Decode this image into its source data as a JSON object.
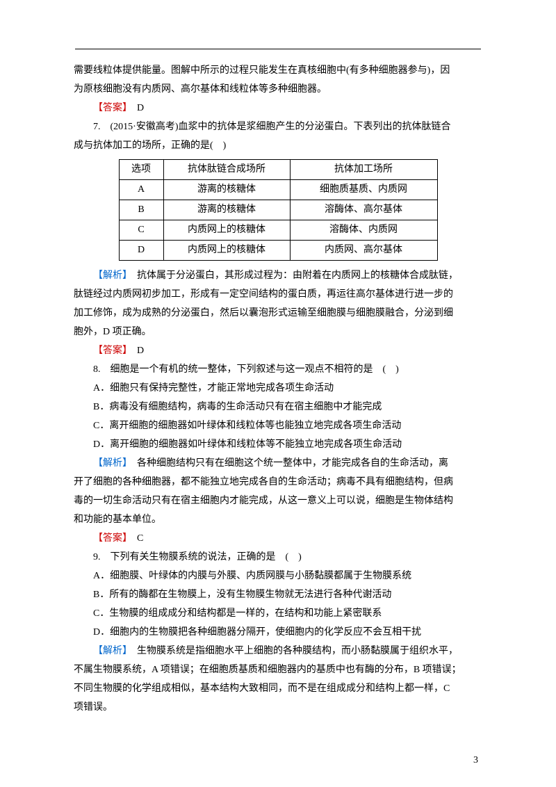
{
  "intro": {
    "line1": "需要线粒体提供能量。图解中所示的过程只能发生在真核细胞中(有多种细胞器参与)，因",
    "line2": "为原核细胞没有内质网、高尔基体和线粒体等多种细胞器。"
  },
  "answer6": {
    "label": "【答案】",
    "value": "　D"
  },
  "q7": {
    "heading": "7.　(2015·安徽高考)血浆中的抗体是浆细胞产生的分泌蛋白。下表列出的抗体肽链合",
    "heading2": "成与抗体加工的场所，正确的是(　)"
  },
  "table7": {
    "columns": [
      "选项",
      "抗体肽链合成场所",
      "抗体加工场所"
    ],
    "rows": [
      [
        "A",
        "游离的核糖体",
        "细胞质基质、内质网"
      ],
      [
        "B",
        "游离的核糖体",
        "溶酶体、高尔基体"
      ],
      [
        "C",
        "内质网上的核糖体",
        "溶酶体、内质网"
      ],
      [
        "D",
        "内质网上的核糖体",
        "内质网、高尔基体"
      ]
    ]
  },
  "expl7": {
    "label": "【解析】",
    "p1": "　抗体属于分泌蛋白，其形成过程为：由附着在内质网上的核糖体合成肽链，",
    "p2": "肽链经过内质网初步加工，形成有一定空间结构的蛋白质，再运往高尔基体进行进一步的",
    "p3": "加工修饰，成为成熟的分泌蛋白，然后以囊泡形式运输至细胞膜与细胞膜融合，分泌到细",
    "p4": "胞外，D 项正确。"
  },
  "answer7": {
    "label": "【答案】",
    "value": "　D"
  },
  "q8": {
    "heading": "8.　细胞是一个有机的统一整体，下列叙述与这一观点不相符的是　(　)",
    "A": "A．细胞只有保持完整性，才能正常地完成各项生命活动",
    "B": "B．病毒没有细胞结构，病毒的生命活动只有在宿主细胞中才能完成",
    "C": "C．离开细胞的细胞器如叶绿体和线粒体等也能独立地完成各项生命活动",
    "D": "D．离开细胞的细胞器如叶绿体和线粒体等不能独立地完成各项生命活动"
  },
  "expl8": {
    "label": "【解析】",
    "p1": "　各种细胞结构只有在细胞这个统一整体中，才能完成各自的生命活动，离",
    "p2": "开了细胞的各种细胞器，都不能独立地完成各自的生命活动；病毒不具有细胞结构，但病",
    "p3": "毒的一切生命活动只有在宿主细胞内才能完成，从这一意义上可以说，细胞是生物体结构",
    "p4": "和功能的基本单位。"
  },
  "answer8": {
    "label": "【答案】",
    "value": "　C"
  },
  "q9": {
    "heading": "9.　下列有关生物膜系统的说法，正确的是　(　)",
    "A": "A．细胞膜、叶绿体的内膜与外膜、内质网膜与小肠黏膜都属于生物膜系统",
    "B": "B．所有的酶都在生物膜上，没有生物膜生物就无法进行各种代谢活动",
    "C": "C．生物膜的组成成分和结构都是一样的，在结构和功能上紧密联系",
    "D": "D．细胞内的生物膜把各种细胞器分隔开，使细胞内的化学反应不会互相干扰"
  },
  "expl9": {
    "label": "【解析】",
    "p1": "　生物膜系统是指细胞水平上细胞的各种膜结构，而小肠黏膜属于组织水平，",
    "p2": "不属生物膜系统，A 项错误；在细胞质基质和细胞器内的基质中也有酶的分布，B 项错误；",
    "p3": "不同生物膜的化学组成相似，基本结构大致相同，而不是在组成成分和结构上都一样，C",
    "p4": "项错误。"
  },
  "page_number": "3"
}
